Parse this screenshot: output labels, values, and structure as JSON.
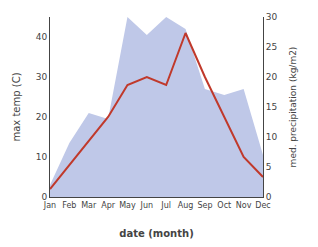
{
  "chart_data": {
    "type": "line",
    "categories": [
      "Jan",
      "Feb",
      "Mar",
      "Apr",
      "May",
      "Jun",
      "Jul",
      "Aug",
      "Sep",
      "Oct",
      "Nov",
      "Dec"
    ],
    "series": [
      {
        "type": "area",
        "color": "#bfc8e8",
        "axis": "y2",
        "values": [
          2,
          9,
          14,
          13,
          30,
          27,
          30,
          28,
          18,
          17,
          18,
          7
        ]
      },
      {
        "type": "line",
        "color": "#c0392b",
        "values": [
          2,
          8,
          14,
          20,
          28,
          30,
          28,
          41,
          30,
          20,
          10,
          5
        ]
      }
    ],
    "xlabel": "date (month)",
    "ylabel": "max temp (C)",
    "y2label": "med. precipitation (kg/m2)",
    "ylim": [
      0,
      45
    ],
    "yticks": [
      0,
      10,
      20,
      30,
      40
    ],
    "y2lim": [
      0,
      30
    ],
    "y2ticks": [
      0,
      5,
      10,
      15,
      20,
      25,
      30
    ],
    "grid": false
  }
}
